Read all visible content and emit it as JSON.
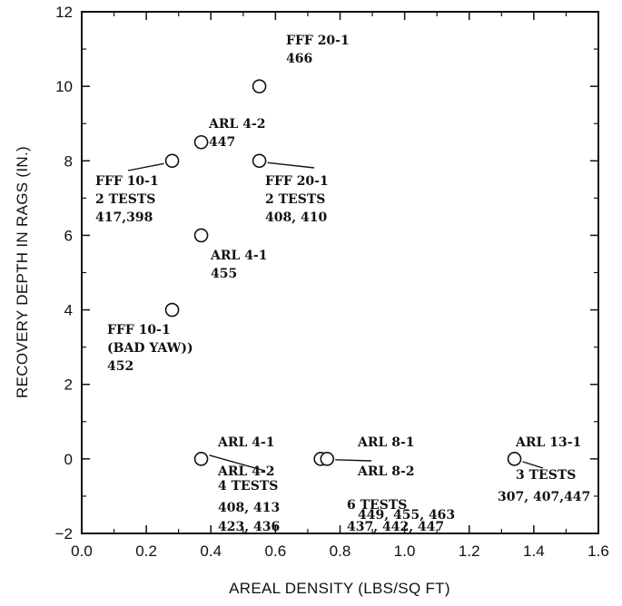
{
  "chart_data": {
    "type": "scatter",
    "title": "",
    "xlabel": "AREAL DENSITY (LBS/SQ FT)",
    "ylabel": "RECOVERY DEPTH IN RAGS (IN.)",
    "xlim": [
      0.0,
      1.6
    ],
    "ylim": [
      -2,
      12
    ],
    "x_ticks": [
      "0.0",
      "0.2",
      "0.4",
      "0.6",
      "0.8",
      "1.0",
      "1.2",
      "1.4",
      "1.6"
    ],
    "y_ticks": [
      "-2",
      "0",
      "2",
      "4",
      "6",
      "8",
      "10",
      "12"
    ],
    "grid": false,
    "marker": "open-circle",
    "points": [
      {
        "x": 0.55,
        "y": 10
      },
      {
        "x": 0.37,
        "y": 8.5
      },
      {
        "x": 0.28,
        "y": 8
      },
      {
        "x": 0.55,
        "y": 8
      },
      {
        "x": 0.37,
        "y": 6
      },
      {
        "x": 0.28,
        "y": 4
      },
      {
        "x": 0.37,
        "y": 0
      },
      {
        "x": 0.74,
        "y": 0
      },
      {
        "x": 0.76,
        "y": 0
      },
      {
        "x": 1.34,
        "y": 0
      }
    ],
    "annotations": [
      {
        "lines": [
          "FFF 20-1",
          "466"
        ]
      },
      {
        "lines": [
          "ARL 4-2",
          "447"
        ]
      },
      {
        "lines": [
          "FFF 10-1",
          "2 TESTS",
          "417,398"
        ]
      },
      {
        "lines": [
          "FFF 20-1",
          "2 TESTS",
          "408, 410"
        ]
      },
      {
        "lines": [
          "ARL 4-1",
          "455"
        ]
      },
      {
        "lines": [
          "FFF 10-1",
          "(BAD YAW))",
          "452"
        ]
      },
      {
        "lines": [
          "ARL 4-1",
          "ARL 4-2",
          "4 TESTS",
          "408, 413",
          "423, 436"
        ]
      },
      {
        "lines": [
          "ARL 8-1",
          "ARL 8-2",
          "6 TESTS",
          "437, 442, 447",
          "449, 455, 463"
        ]
      },
      {
        "lines": [
          "ARL 13-1",
          "3 TESTS",
          "307, 407,447"
        ]
      }
    ]
  }
}
